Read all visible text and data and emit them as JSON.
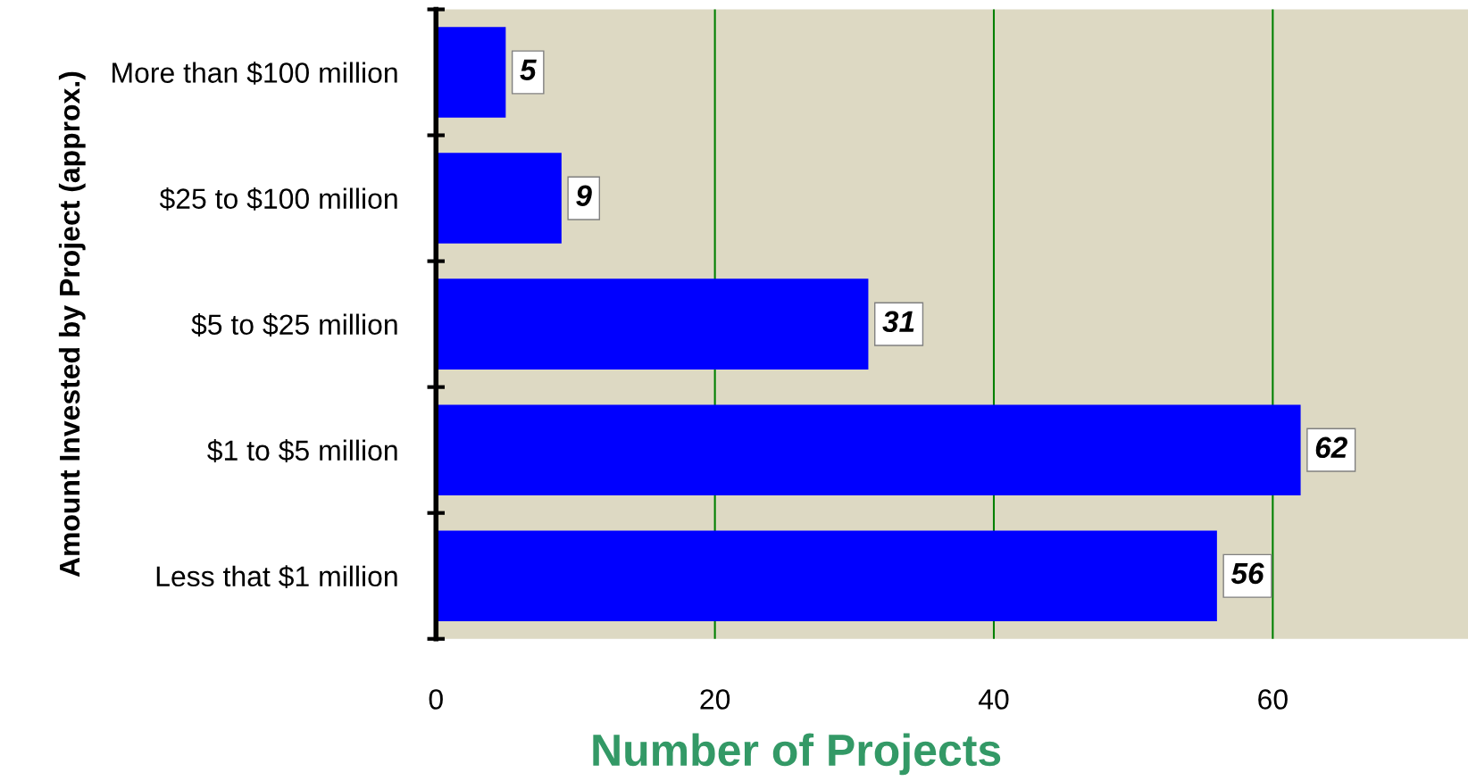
{
  "chart_data": {
    "type": "bar",
    "orientation": "horizontal",
    "categories": [
      "More than $100 million",
      "$25 to $100 million",
      "$5 to $25 million",
      "$1 to $5 million",
      "Less that $1 million"
    ],
    "values": [
      5,
      9,
      31,
      62,
      56
    ],
    "color": "#0000ff",
    "xlabel": "Number of Projects",
    "ylabel": "Amount Invested by Project (approx.)",
    "xlim": [
      0,
      74
    ],
    "xticks": [
      0,
      20,
      40,
      60
    ],
    "grid": "x",
    "data_labels": true
  }
}
